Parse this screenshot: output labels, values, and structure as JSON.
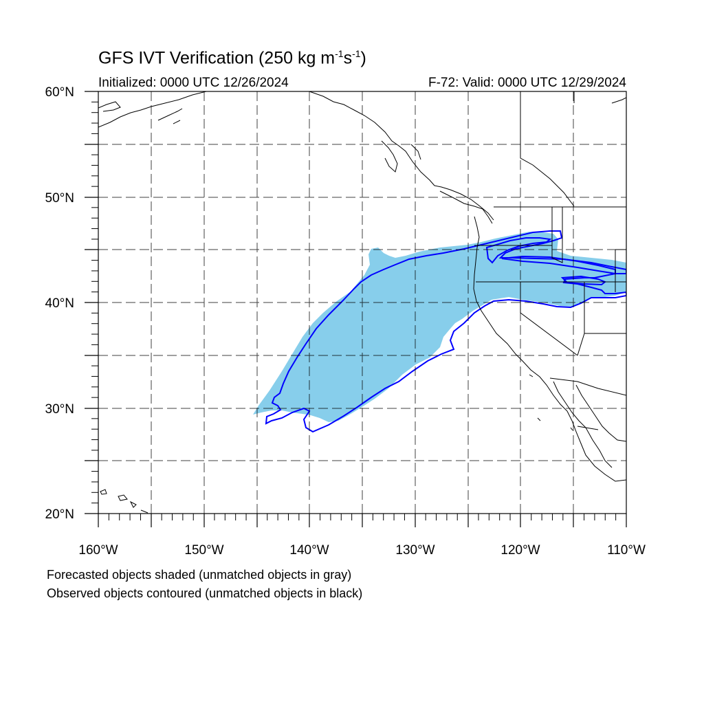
{
  "title": {
    "text": "GFS IVT Verification (250 kg m",
    "sup1": "-1",
    "mid": "s",
    "sup2": "-1",
    "end": ")"
  },
  "initialized": "Initialized: 0000 UTC 12/26/2024",
  "valid": "F-72: Valid: 0000 UTC 12/29/2024",
  "notes": {
    "forecast": "Forecasted objects shaded (unmatched objects in gray)",
    "observed": "Observed objects contoured (unmatched objects in black)"
  },
  "map": {
    "lon_range": [
      -160,
      -110
    ],
    "lat_range": [
      20,
      60
    ],
    "lon_labels": [
      "160°W",
      "150°W",
      "140°W",
      "130°W",
      "120°W",
      "110°W"
    ],
    "lat_labels": [
      "20°N",
      "30°N",
      "40°N",
      "50°N",
      "60°N"
    ],
    "grid": "dashed every 5°",
    "forecast_fill_color": "#87ceeb",
    "observed_contour_color": "#0000ff",
    "coastline_color": "#000000"
  }
}
